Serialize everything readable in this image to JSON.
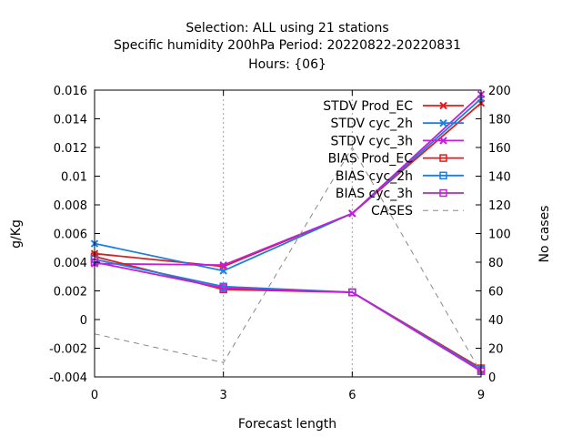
{
  "chart_data": {
    "type": "line",
    "title_lines": [
      "Selection: ALL using    21 stations",
      "Specific humidity 200hPa   Period: 20220822-20220831",
      "Hours: {06}"
    ],
    "xlabel": "Forecast length",
    "ylabel": "g/Kg",
    "y2label": "No cases",
    "x": [
      0,
      3,
      6,
      9
    ],
    "xlim": [
      0,
      9
    ],
    "ylim": [
      -0.004,
      0.016
    ],
    "y2lim": [
      0,
      200
    ],
    "xticks": [
      0,
      3,
      6,
      9
    ],
    "yticks": [
      -0.004,
      -0.002,
      0,
      0.002,
      0.004,
      0.006,
      0.008,
      0.01,
      0.012,
      0.014,
      0.016
    ],
    "ytick_labels": [
      "-0.004",
      "-0.002",
      "0",
      "0.002",
      "0.004",
      "0.006",
      "0.008",
      "0.01",
      "0.012",
      "0.014",
      "0.016"
    ],
    "y2ticks": [
      0,
      20,
      40,
      60,
      80,
      100,
      120,
      140,
      160,
      180,
      200
    ],
    "grid": "vertical dashed at x ticks",
    "legend_position": "top-right",
    "series": [
      {
        "name": "STDV Prod_EC",
        "values": [
          0.0046,
          0.0037,
          0.0074,
          0.0151
        ],
        "color": "#e41a1c",
        "marker": "x",
        "axis": "y1"
      },
      {
        "name": "STDV cyc_2h",
        "values": [
          0.0053,
          0.0034,
          0.0074,
          0.0154
        ],
        "color": "#1a7fe0",
        "marker": "x",
        "axis": "y1"
      },
      {
        "name": "STDV cyc_3h",
        "values": [
          0.0039,
          0.0038,
          0.0074,
          0.0157
        ],
        "color": "#c020d8",
        "marker": "x",
        "axis": "y1"
      },
      {
        "name": "BIAS Prod_EC",
        "values": [
          0.0044,
          0.0021,
          0.0019,
          -0.0034
        ],
        "color": "#e41a1c",
        "marker": "square",
        "axis": "y1"
      },
      {
        "name": "BIAS cyc_2h",
        "values": [
          0.0042,
          0.0023,
          0.0019,
          -0.0035
        ],
        "color": "#1a7fe0",
        "marker": "square",
        "axis": "y1"
      },
      {
        "name": "BIAS cyc_3h",
        "values": [
          0.004,
          0.0022,
          0.0019,
          -0.0036
        ],
        "color": "#c020d8",
        "marker": "square",
        "axis": "y1"
      },
      {
        "name": "CASES",
        "values": [
          30,
          10,
          160,
          3
        ],
        "color": "#888888",
        "marker": "none",
        "dash": true,
        "axis": "y2"
      }
    ]
  }
}
